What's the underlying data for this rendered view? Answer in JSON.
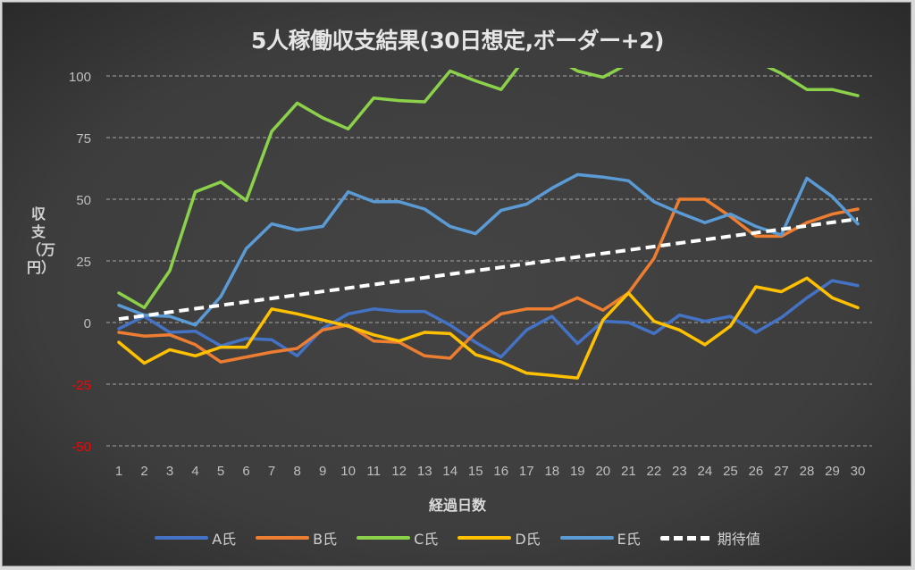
{
  "chart_data": {
    "type": "line",
    "title": "5人稼働収支結果(30日想定,ボーダー+2)",
    "xlabel": "経過日数",
    "ylabel": "収支（万円）",
    "ylim": [
      -50,
      100
    ],
    "yticks": [
      100,
      75,
      50,
      25,
      0,
      -25,
      -50
    ],
    "negative_tick_color": "#ff0000",
    "grid": true,
    "legend_position": "bottom",
    "x": [
      1,
      2,
      3,
      4,
      5,
      6,
      7,
      8,
      9,
      10,
      11,
      12,
      13,
      14,
      15,
      16,
      17,
      18,
      19,
      20,
      21,
      22,
      23,
      24,
      25,
      26,
      27,
      28,
      29,
      30
    ],
    "series": [
      {
        "name": "A氏",
        "color": "#4472c4",
        "dashed": false,
        "values": [
          -2.5,
          2.5,
          -4,
          -3.5,
          -9.5,
          -6.5,
          -7,
          -13.5,
          -2.5,
          3.5,
          5.5,
          4.5,
          4.5,
          -1,
          -8,
          -14,
          -3,
          2.5,
          -8.5,
          0.5,
          0,
          -4.5,
          3,
          0.5,
          2.5,
          -4,
          2,
          10,
          17,
          15
        ]
      },
      {
        "name": "B氏",
        "color": "#ed7d31",
        "dashed": false,
        "values": [
          -4,
          -5.5,
          -5,
          -9,
          -16,
          -14,
          -12,
          -10.5,
          -3,
          -1,
          -7.5,
          -8,
          -13.5,
          -14.5,
          -4,
          3.5,
          5.5,
          5.5,
          10,
          5,
          12,
          26,
          50,
          50,
          43,
          35,
          35,
          40.5,
          44,
          46
        ]
      },
      {
        "name": "C氏",
        "color": "#8bd14a",
        "dashed": false,
        "values": [
          12,
          6,
          21,
          53,
          57,
          49.5,
          77.5,
          89,
          83,
          78.5,
          91,
          90,
          89.5,
          102,
          98,
          94.5,
          108,
          108,
          102,
          99.5,
          105,
          108,
          110,
          112,
          110,
          106,
          101,
          94.5,
          94.5,
          92
        ]
      },
      {
        "name": "D氏",
        "color": "#ffc000",
        "dashed": false,
        "values": [
          -8,
          -16.5,
          -11,
          -13.5,
          -10,
          -10,
          5.5,
          3.5,
          1,
          -1.5,
          -5,
          -7.5,
          -4,
          -4.5,
          -13,
          -16,
          -20.5,
          -21.5,
          -22.5,
          1,
          12,
          0.5,
          -3,
          -9,
          -1.5,
          14.5,
          12.5,
          18,
          10,
          6
        ]
      },
      {
        "name": "E氏",
        "color": "#5b9bd5",
        "dashed": false,
        "values": [
          7,
          3,
          2.5,
          -1,
          10.5,
          30,
          40,
          37.5,
          39,
          53,
          49,
          49,
          46,
          39,
          36,
          45.5,
          48,
          54.5,
          60,
          59,
          57.5,
          49,
          44.5,
          40.5,
          44,
          39,
          35.5,
          58.5,
          51,
          40
        ]
      },
      {
        "name": "期待値",
        "color": "#ffffff",
        "dashed": true,
        "values": [
          1.4,
          2.8,
          4.2,
          5.6,
          7,
          8.4,
          9.8,
          11.2,
          12.6,
          14,
          15.4,
          16.8,
          18.2,
          19.6,
          21,
          22.4,
          23.8,
          25.2,
          26.6,
          28,
          29.4,
          30.8,
          32.2,
          33.6,
          35,
          36.4,
          37.8,
          39.2,
          40.6,
          42
        ]
      }
    ]
  }
}
